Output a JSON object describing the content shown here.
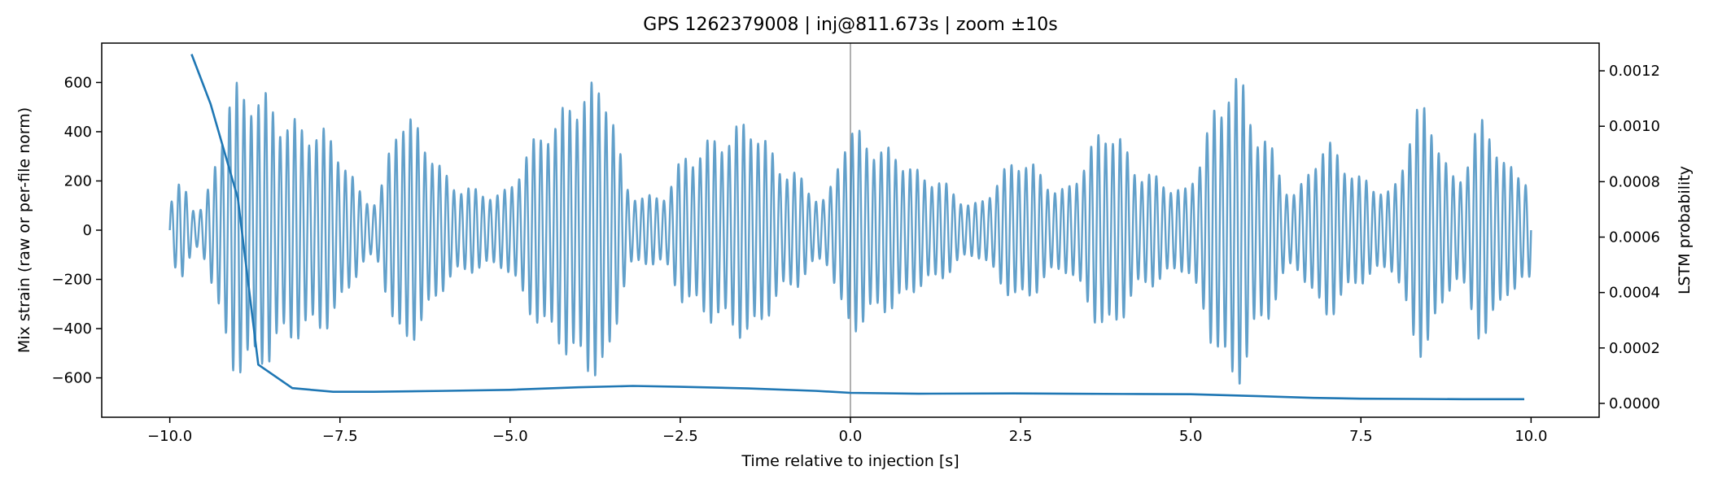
{
  "chart_data": {
    "type": "line",
    "title": "GPS 1262379008 | inj@811.673s | zoom ±10s",
    "xlabel": "Time relative to injection [s]",
    "ylabel_left": "Mix strain (raw or per-file norm)",
    "ylabel_right": "LSTM probability",
    "xlim": [
      -11,
      11
    ],
    "ylim_left": [
      -760,
      760
    ],
    "ylim_right": [
      -5e-05,
      0.0013
    ],
    "x_ticks": [
      -10.0,
      -7.5,
      -5.0,
      -2.5,
      0.0,
      2.5,
      5.0,
      7.5,
      10.0
    ],
    "x_tick_labels": [
      "−10.0",
      "−7.5",
      "−5.0",
      "−2.5",
      "0.0",
      "2.5",
      "5.0",
      "7.5",
      "10.0"
    ],
    "y_left_ticks": [
      600,
      400,
      200,
      0,
      -200,
      -400,
      -600
    ],
    "y_left_tick_labels": [
      "600",
      "400",
      "200",
      "0",
      "−200",
      "−400",
      "−600"
    ],
    "y_right_ticks": [
      0.0012,
      0.001,
      0.0008,
      0.0006,
      0.0004,
      0.0002,
      0.0
    ],
    "y_right_tick_labels": [
      "0.0012",
      "0.0010",
      "0.0008",
      "0.0006",
      "0.0004",
      "0.0002",
      "0.0000"
    ],
    "vertical_marker_x": 0.0,
    "colors": {
      "strain": "#1f77b4",
      "lstm": "#1f77b4",
      "marker": "#b0b0b0"
    },
    "series": [
      {
        "axis": "left",
        "style": "oscillating strain, alpha 0.7",
        "x_range": [
          -10.0,
          10.0
        ],
        "envelope_peaks": [
          {
            "t": -10.0,
            "amp": 120
          },
          {
            "t": -9.82,
            "amp": 200
          },
          {
            "t": -9.6,
            "amp": 80
          },
          {
            "t": -9.0,
            "amp": 600
          },
          {
            "t": -8.6,
            "amp": 560
          },
          {
            "t": -8.3,
            "amp": 460
          },
          {
            "t": -7.8,
            "amp": 420
          },
          {
            "t": -7.0,
            "amp": 120
          },
          {
            "t": -6.6,
            "amp": 480
          },
          {
            "t": -5.7,
            "amp": 180
          },
          {
            "t": -5.2,
            "amp": 150
          },
          {
            "t": -4.4,
            "amp": 440
          },
          {
            "t": -4.05,
            "amp": 560
          },
          {
            "t": -3.65,
            "amp": 620
          },
          {
            "t": -3.2,
            "amp": 150
          },
          {
            "t": -2.8,
            "amp": 140
          },
          {
            "t": -2.4,
            "amp": 310
          },
          {
            "t": -2.0,
            "amp": 380
          },
          {
            "t": -1.5,
            "amp": 450
          },
          {
            "t": -0.9,
            "amp": 250
          },
          {
            "t": -0.4,
            "amp": 130
          },
          {
            "t": 0.0,
            "amp": 420
          },
          {
            "t": 0.5,
            "amp": 340
          },
          {
            "t": 1.2,
            "amp": 220
          },
          {
            "t": 1.8,
            "amp": 110
          },
          {
            "t": 2.5,
            "amp": 300
          },
          {
            "t": 3.1,
            "amp": 170
          },
          {
            "t": 3.8,
            "amp": 430
          },
          {
            "t": 4.3,
            "amp": 240
          },
          {
            "t": 4.9,
            "amp": 170
          },
          {
            "t": 5.4,
            "amp": 500
          },
          {
            "t": 5.62,
            "amp": 680
          },
          {
            "t": 6.0,
            "amp": 420
          },
          {
            "t": 6.5,
            "amp": 160
          },
          {
            "t": 7.0,
            "amp": 360
          },
          {
            "t": 7.5,
            "amp": 220
          },
          {
            "t": 7.9,
            "amp": 160
          },
          {
            "t": 8.4,
            "amp": 520
          },
          {
            "t": 8.9,
            "amp": 220
          },
          {
            "t": 9.3,
            "amp": 460
          },
          {
            "t": 9.7,
            "amp": 260
          },
          {
            "t": 10.0,
            "amp": 220
          }
        ]
      },
      {
        "axis": "right",
        "x": [
          -9.68,
          -9.4,
          -9.0,
          -8.7,
          -8.2,
          -7.6,
          -7.0,
          -6.0,
          -5.0,
          -4.0,
          -3.2,
          -2.5,
          -1.5,
          -0.5,
          0.0,
          1.0,
          2.4,
          3.2,
          4.0,
          5.0,
          6.0,
          6.8,
          7.5,
          8.3,
          9.0,
          9.9
        ],
        "y": [
          0.00126,
          0.00108,
          0.00074,
          0.00014,
          5.5e-05,
          4.2e-05,
          4.2e-05,
          4.5e-05,
          4.9e-05,
          5.8e-05,
          6.3e-05,
          6e-05,
          5.4e-05,
          4.5e-05,
          3.8e-05,
          3.5e-05,
          3.6e-05,
          3.5e-05,
          3.4e-05,
          3.3e-05,
          2.6e-05,
          2e-05,
          1.7e-05,
          1.6e-05,
          1.5e-05,
          1.5e-05
        ]
      }
    ]
  }
}
